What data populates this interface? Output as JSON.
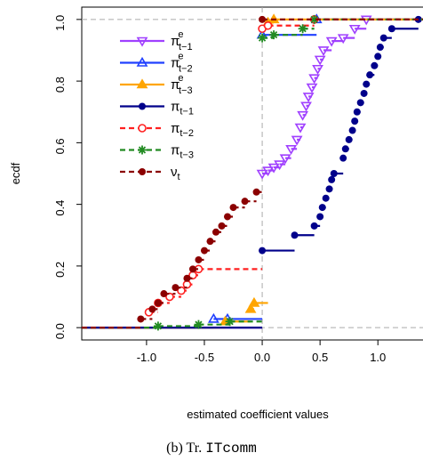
{
  "chart_data": {
    "type": "ecdf",
    "ylabel": "ecdf",
    "xlabel": "estimated coefficient values",
    "caption": "(b) Tr.",
    "caption_code": "ITcomm",
    "xlim": [
      -1.56,
      1.39
    ],
    "ylim": [
      -0.04,
      1.04
    ],
    "xticks": [
      {
        "value": -1,
        "label": "-1.0"
      },
      {
        "value": -0.5,
        "label": "-0.5"
      },
      {
        "value": 0,
        "label": "0.0"
      },
      {
        "value": 0.5,
        "label": "0.5"
      },
      {
        "value": 1,
        "label": "1.0"
      }
    ],
    "yticks": [
      {
        "value": 0,
        "label": "0.0"
      },
      {
        "value": 0.2,
        "label": "0.2"
      },
      {
        "value": 0.4,
        "label": "0.4"
      },
      {
        "value": 0.6,
        "label": "0.6"
      },
      {
        "value": 0.8,
        "label": "0.8"
      },
      {
        "value": 1,
        "label": "1.0"
      }
    ],
    "ref_lines": {
      "h": [
        0,
        1
      ],
      "v": [
        0
      ]
    },
    "legend": "top-left",
    "series": [
      {
        "name": "π",
        "sub": "t−1",
        "sup": "e",
        "color": "#a040ff",
        "marker": "triangle-down-open",
        "dashed": false,
        "x": [
          0.0,
          0.05,
          0.1,
          0.15,
          0.2,
          0.25,
          0.3,
          0.33,
          0.35,
          0.38,
          0.4,
          0.43,
          0.45,
          0.48,
          0.5,
          0.53,
          0.6,
          0.7,
          0.8,
          0.9
        ],
        "values": [
          0.5,
          0.51,
          0.52,
          0.53,
          0.55,
          0.58,
          0.61,
          0.65,
          0.69,
          0.72,
          0.75,
          0.78,
          0.81,
          0.84,
          0.87,
          0.9,
          0.93,
          0.94,
          0.97,
          1.0
        ]
      },
      {
        "name": "π",
        "sub": "t−2",
        "sup": "e",
        "color": "#2040ff",
        "marker": "triangle-open",
        "dashed": false,
        "x": [
          -0.42,
          -0.3,
          0.0,
          0.47
        ],
        "values": [
          0.028,
          0.028,
          0.95,
          1.0
        ]
      },
      {
        "name": "π",
        "sub": "t−3",
        "sup": "e",
        "color": "#ffa500",
        "marker": "triangle",
        "dashed": false,
        "x": [
          -0.32,
          -0.1,
          -0.07,
          0.05,
          0.1
        ],
        "values": [
          0.02,
          0.06,
          0.08,
          0.99,
          1.0
        ]
      },
      {
        "name": "π",
        "sub": "t−1",
        "color": "#00008b",
        "marker": "circle",
        "dashed": false,
        "x": [
          0.0,
          0.28,
          0.45,
          0.5,
          0.52,
          0.55,
          0.58,
          0.6,
          0.62,
          0.7,
          0.72,
          0.75,
          0.78,
          0.8,
          0.82,
          0.85,
          0.88,
          0.9,
          0.93,
          0.97,
          1.0,
          1.02,
          1.05,
          1.12,
          1.35
        ],
        "values": [
          0.25,
          0.3,
          0.33,
          0.36,
          0.39,
          0.42,
          0.45,
          0.48,
          0.5,
          0.55,
          0.58,
          0.61,
          0.64,
          0.67,
          0.7,
          0.73,
          0.76,
          0.79,
          0.82,
          0.85,
          0.88,
          0.91,
          0.94,
          0.97,
          1.0
        ]
      },
      {
        "name": "π",
        "sub": "t−2",
        "color": "#ff2020",
        "marker": "circle-open",
        "dashed": true,
        "x": [
          -0.98,
          -0.9,
          -0.8,
          -0.7,
          -0.65,
          -0.6,
          -0.55,
          0.0,
          0.05,
          0.45
        ],
        "values": [
          0.05,
          0.08,
          0.1,
          0.12,
          0.14,
          0.17,
          0.19,
          0.97,
          0.98,
          1.0
        ]
      },
      {
        "name": "π",
        "sub": "t−3",
        "color": "#228b22",
        "marker": "star",
        "dashed": true,
        "x": [
          -0.9,
          -0.55,
          -0.28,
          0.0,
          0.1,
          0.35,
          0.45
        ],
        "values": [
          0.005,
          0.01,
          0.02,
          0.94,
          0.95,
          0.97,
          1.0
        ]
      },
      {
        "name": "ν",
        "sub": "t",
        "color": "#8b0000",
        "marker": "circle",
        "dashed": true,
        "x": [
          -1.05,
          -0.95,
          -0.9,
          -0.85,
          -0.75,
          -0.65,
          -0.6,
          -0.55,
          -0.5,
          -0.45,
          -0.4,
          -0.35,
          -0.3,
          -0.25,
          -0.15,
          -0.05,
          0.0
        ],
        "values": [
          0.028,
          0.06,
          0.08,
          0.11,
          0.13,
          0.16,
          0.19,
          0.22,
          0.25,
          0.28,
          0.31,
          0.33,
          0.36,
          0.39,
          0.41,
          0.44,
          1.0
        ]
      }
    ]
  }
}
